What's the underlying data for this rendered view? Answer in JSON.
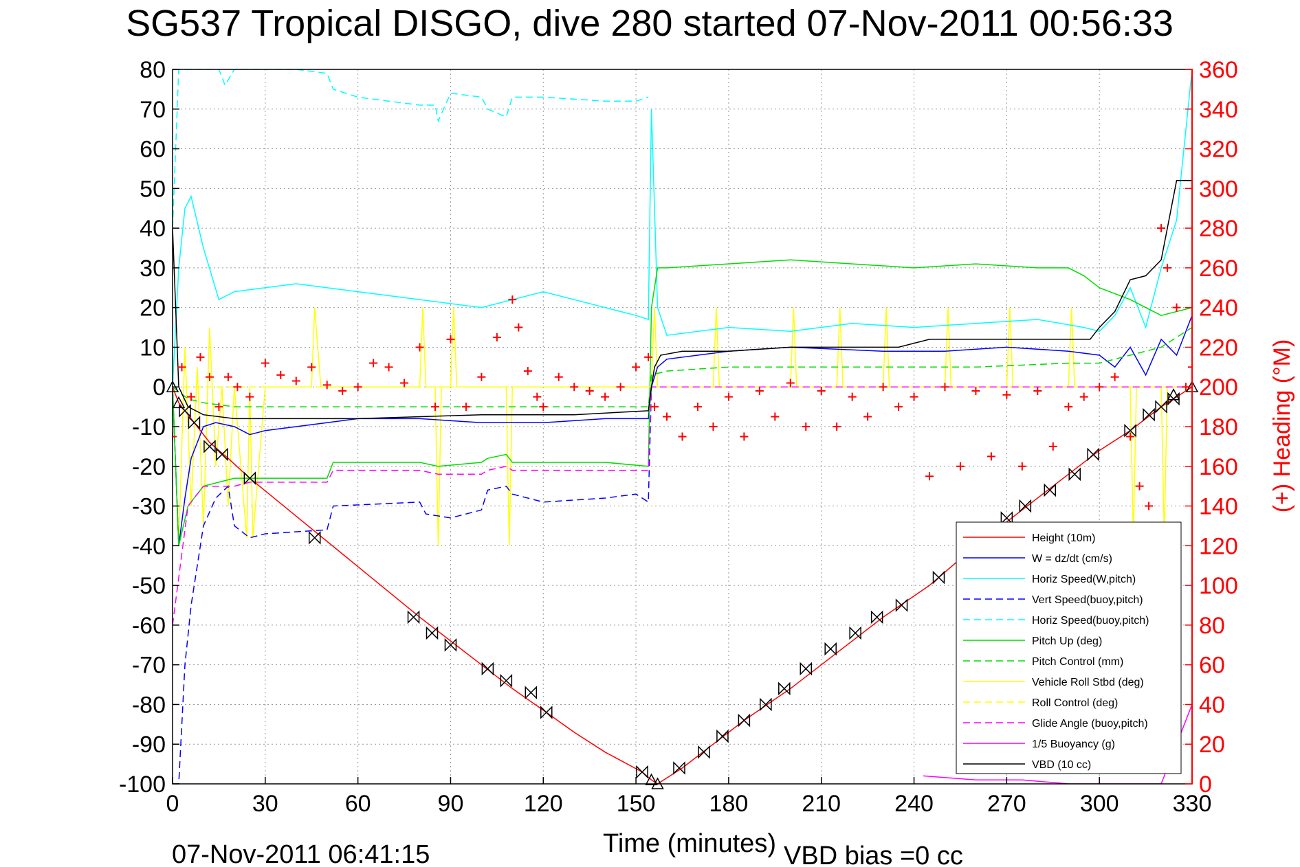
{
  "chart_data": {
    "type": "line",
    "title": "SG537 Tropical DISGO, dive 280 started 07-Nov-2011 00:56:33",
    "xlabel": "Time (minutes)",
    "ylabel": "",
    "y2label": "(+) Heading (°M)",
    "bottom_left_text": "07-Nov-2011 06:41:15",
    "bottom_right_text": "VBD bias =0 cc",
    "xlim": [
      0,
      330
    ],
    "ylim": [
      -100,
      80
    ],
    "y2lim": [
      0,
      360
    ],
    "grid": true,
    "legend_position": "lower-right",
    "x_ticks": [
      "0",
      "30",
      "60",
      "90",
      "120",
      "150",
      "180",
      "210",
      "240",
      "270",
      "300",
      "330"
    ],
    "y_ticks": [
      "80",
      "70",
      "60",
      "50",
      "40",
      "30",
      "20",
      "10",
      "0",
      "-10",
      "-20",
      "-30",
      "-40",
      "-50",
      "-60",
      "-70",
      "-80",
      "-90",
      "-100"
    ],
    "y2_ticks": [
      "360",
      "340",
      "320",
      "300",
      "280",
      "260",
      "240",
      "220",
      "200",
      "180",
      "160",
      "140",
      "120",
      "100",
      "80",
      "60",
      "40",
      "20",
      "0"
    ],
    "legend": [
      {
        "label": "Height (10m)",
        "color": "#ff0000",
        "dash": "solid"
      },
      {
        "label": "W = dz/dt (cm/s)",
        "color": "#0000ff",
        "dash": "solid"
      },
      {
        "label": "Horiz Speed(W,pitch)",
        "color": "#00ffff",
        "dash": "solid"
      },
      {
        "label": "Vert Speed(buoy,pitch)",
        "color": "#0000ff",
        "dash": "dashed"
      },
      {
        "label": "Horiz Speed(buoy,pitch)",
        "color": "#00ffff",
        "dash": "dashed"
      },
      {
        "label": "Pitch Up (deg)",
        "color": "#00dd00",
        "dash": "solid"
      },
      {
        "label": "Pitch Control (mm)",
        "color": "#00dd00",
        "dash": "dashed"
      },
      {
        "label": "Vehicle Roll Stbd (deg)",
        "color": "#ffff00",
        "dash": "solid"
      },
      {
        "label": "Roll Control (deg)",
        "color": "#ffff00",
        "dash": "dashed"
      },
      {
        "label": "Glide Angle (buoy,pitch)",
        "color": "#ff00ff",
        "dash": "dashed"
      },
      {
        "label": "1/5 Buoyancy (g)",
        "color": "#ff00ff",
        "dash": "solid"
      },
      {
        "label": "VBD (10 cc)",
        "color": "#000000",
        "dash": "solid"
      }
    ],
    "series": [
      {
        "key": "height",
        "color": "#ff0000",
        "dash": "solid",
        "x": [
          0,
          2,
          5,
          8,
          12,
          18,
          25,
          47,
          80,
          90,
          100,
          110,
          121,
          130,
          140,
          152,
          155,
          157,
          165,
          175,
          185,
          200,
          215,
          230,
          245,
          260,
          275,
          290,
          300,
          310,
          320,
          330
        ],
        "y": [
          0,
          -4,
          -7,
          -10,
          -14,
          -18,
          -23,
          -37,
          -58,
          -64,
          -70,
          -76,
          -82,
          -87,
          -92,
          -97,
          -99,
          -100,
          -96,
          -90,
          -84,
          -76,
          -67,
          -58,
          -50,
          -40,
          -31,
          -22,
          -16,
          -11,
          -5,
          0
        ]
      },
      {
        "key": "w",
        "color": "#0000ff",
        "dash": "solid",
        "x": [
          0,
          2,
          4,
          6,
          8,
          10,
          14,
          20,
          25,
          30,
          40,
          50,
          60,
          80,
          100,
          120,
          140,
          154,
          155,
          157,
          160,
          180,
          200,
          230,
          250,
          270,
          290,
          300,
          305,
          310,
          315,
          320,
          325,
          330
        ],
        "y": [
          0,
          -40,
          -28,
          -18,
          -14,
          -10,
          -9,
          -10,
          -12,
          -11,
          -10,
          -9,
          -8,
          -8,
          -9,
          -9,
          -8,
          -8,
          0,
          5,
          7,
          9,
          10,
          9,
          9,
          10,
          9,
          8,
          5,
          10,
          3,
          12,
          8,
          18
        ]
      },
      {
        "key": "horiz_speed_w",
        "color": "#00ffff",
        "dash": "solid",
        "x": [
          0,
          2,
          4,
          6,
          10,
          15,
          20,
          30,
          40,
          60,
          80,
          100,
          120,
          140,
          150,
          154,
          155,
          157,
          160,
          180,
          200,
          220,
          240,
          260,
          280,
          295,
          300,
          305,
          310,
          315,
          320,
          325,
          330
        ],
        "y": [
          0,
          30,
          45,
          48,
          35,
          22,
          24,
          25,
          26,
          24,
          22,
          20,
          24,
          20,
          18,
          17,
          70,
          20,
          13,
          15,
          14,
          16,
          15,
          16,
          17,
          15,
          14,
          18,
          25,
          15,
          30,
          42,
          80
        ]
      },
      {
        "key": "vert_speed_buoy",
        "color": "#0000ff",
        "dash": "dashed",
        "x": [
          0,
          2,
          4,
          6,
          8,
          10,
          14,
          18,
          20,
          25,
          30,
          50,
          52,
          80,
          82,
          90,
          100,
          102,
          108,
          110,
          120,
          140,
          150,
          154,
          155,
          157
        ],
        "y": [
          -100,
          -100,
          -70,
          -55,
          -45,
          -35,
          -28,
          -25,
          -35,
          -38,
          -37,
          -36,
          -30,
          -29,
          -32,
          -33,
          -31,
          -26,
          -25,
          -27,
          -29,
          -28,
          -27,
          -29,
          0,
          0
        ]
      },
      {
        "key": "horiz_speed_buoy",
        "color": "#00ffff",
        "dash": "dashed",
        "x": [
          0,
          2,
          5,
          10,
          15,
          17,
          20,
          25,
          30,
          40,
          50,
          52,
          60,
          70,
          80,
          85,
          86,
          90,
          100,
          102,
          108,
          110,
          120,
          140,
          150,
          154
        ],
        "y": [
          40,
          80,
          80,
          80,
          80,
          76,
          80,
          80,
          80,
          80,
          79,
          75,
          73,
          72,
          71,
          71,
          67,
          74,
          73,
          70,
          68,
          73,
          73,
          72,
          72,
          73
        ]
      },
      {
        "key": "pitch_up",
        "color": "#00dd00",
        "dash": "solid",
        "x": [
          0,
          2,
          5,
          10,
          15,
          20,
          25,
          30,
          40,
          50,
          52,
          60,
          80,
          86,
          100,
          102,
          108,
          110,
          120,
          140,
          154,
          155,
          157,
          160,
          180,
          200,
          220,
          240,
          260,
          280,
          290,
          295,
          300,
          310,
          320,
          330
        ],
        "y": [
          0,
          -40,
          -30,
          -25,
          -24,
          -23,
          -23,
          -23,
          -23,
          -23,
          -19,
          -19,
          -19,
          -20,
          -19,
          -18,
          -17,
          -19,
          -19,
          -19,
          -20,
          20,
          30,
          30,
          31,
          32,
          31,
          30,
          31,
          30,
          30,
          28,
          25,
          22,
          18,
          20
        ]
      },
      {
        "key": "pitch_control",
        "color": "#00dd00",
        "dash": "dashed",
        "x": [
          0,
          5,
          10,
          20,
          40,
          60,
          80,
          100,
          120,
          140,
          154,
          155,
          160,
          180,
          200,
          230,
          260,
          290,
          300,
          310,
          320,
          330
        ],
        "y": [
          0,
          -3,
          -4,
          -5,
          -5,
          -5,
          -5,
          -5,
          -5,
          -5,
          -5,
          3,
          4,
          5,
          5,
          5,
          5,
          6,
          6,
          8,
          10,
          15
        ]
      },
      {
        "key": "roll_control",
        "color": "#ffff00",
        "dash": "dashed",
        "x": [
          0,
          330
        ],
        "y": [
          0,
          0
        ]
      },
      {
        "key": "glide_angle",
        "color": "#ff00ff",
        "dash": "dashed",
        "x": [
          0,
          5,
          10,
          20,
          25,
          30,
          50,
          52,
          80,
          86,
          100,
          102,
          108,
          110,
          120,
          140,
          154,
          155,
          330
        ],
        "y": [
          -60,
          -30,
          -25,
          -25,
          -24,
          -24,
          -24,
          -21,
          -21,
          -22,
          -22,
          -21,
          -20,
          -21,
          -21,
          -21,
          -21,
          0,
          0
        ]
      },
      {
        "key": "buoyancy",
        "color": "#ff00ff",
        "dash": "solid",
        "x": [
          243,
          260,
          275,
          290,
          300,
          310,
          320,
          330
        ],
        "y": [
          -98,
          -99,
          -99,
          -100,
          -100,
          -100,
          -100,
          -80
        ]
      },
      {
        "key": "vbd",
        "color": "#000000",
        "dash": "solid",
        "x": [
          0,
          2,
          5,
          10,
          20,
          40,
          60,
          100,
          130,
          154,
          155,
          156,
          158,
          165,
          180,
          200,
          215,
          235,
          245,
          265,
          290,
          297,
          300,
          305,
          310,
          315,
          320,
          325,
          330
        ],
        "y": [
          40,
          0,
          -5,
          -7,
          -8,
          -8,
          -8,
          -7,
          -7,
          -6,
          0,
          5,
          8,
          9,
          9,
          10,
          10,
          10,
          12,
          12,
          12,
          12,
          15,
          19,
          27,
          28,
          32,
          52,
          52
        ]
      }
    ],
    "heading": {
      "color": "#ff0000",
      "marker": "+",
      "axis": "y2",
      "x": [
        0,
        3,
        6,
        9,
        12,
        15,
        18,
        21,
        25,
        30,
        35,
        40,
        45,
        50,
        55,
        60,
        65,
        70,
        75,
        80,
        85,
        90,
        95,
        100,
        105,
        110,
        112,
        115,
        118,
        120,
        125,
        130,
        135,
        140,
        145,
        150,
        154,
        156,
        160,
        165,
        170,
        175,
        180,
        185,
        190,
        195,
        200,
        205,
        210,
        215,
        220,
        225,
        230,
        235,
        240,
        245,
        250,
        255,
        260,
        265,
        270,
        275,
        280,
        285,
        290,
        295,
        300,
        305,
        310,
        313,
        316,
        318,
        320,
        322,
        325,
        328,
        330
      ],
      "y": [
        175,
        210,
        195,
        215,
        205,
        190,
        205,
        200,
        195,
        212,
        206,
        203,
        210,
        201,
        198,
        200,
        212,
        210,
        202,
        220,
        190,
        224,
        190,
        205,
        225,
        244,
        230,
        208,
        195,
        190,
        205,
        200,
        198,
        195,
        200,
        210,
        215,
        190,
        185,
        175,
        190,
        180,
        195,
        175,
        198,
        185,
        202,
        180,
        198,
        180,
        195,
        185,
        200,
        190,
        195,
        155,
        200,
        160,
        198,
        165,
        196,
        160,
        198,
        170,
        190,
        195,
        200,
        205,
        175,
        150,
        140,
        120,
        280,
        260,
        240,
        200,
        210
      ]
    },
    "vehicle_roll": {
      "color": "#ffff00",
      "x": [
        0,
        2,
        4,
        6,
        8,
        10,
        12,
        14,
        16,
        18,
        20,
        24,
        25,
        26,
        30,
        45,
        46,
        48,
        80,
        81,
        82,
        85,
        86,
        87,
        90,
        91,
        92,
        108,
        109,
        110,
        150,
        155,
        156,
        157,
        160,
        175,
        176,
        177,
        180,
        200,
        201,
        202,
        215,
        216,
        217,
        230,
        231,
        232,
        250,
        251,
        252,
        270,
        271,
        272,
        290,
        291,
        292,
        300,
        310,
        311,
        312,
        320,
        321,
        322,
        330
      ],
      "y": [
        0,
        -40,
        10,
        -30,
        5,
        -35,
        15,
        -20,
        0,
        -30,
        0,
        -38,
        0,
        -38,
        0,
        0,
        20,
        0,
        0,
        20,
        0,
        0,
        -40,
        0,
        0,
        20,
        0,
        0,
        -40,
        0,
        0,
        0,
        20,
        0,
        0,
        0,
        20,
        0,
        0,
        0,
        20,
        0,
        0,
        20,
        0,
        0,
        20,
        0,
        0,
        20,
        0,
        0,
        20,
        0,
        0,
        20,
        0,
        0,
        0,
        -38,
        0,
        0,
        -38,
        0,
        0
      ]
    },
    "markers": {
      "triangle": {
        "x": [
          0,
          2,
          155,
          157,
          324,
          330
        ],
        "y": [
          0,
          -4,
          -99,
          -100,
          -2,
          0
        ]
      },
      "bowtie": {
        "x": [
          4,
          7,
          12,
          16,
          25,
          46,
          78,
          84,
          90,
          102,
          108,
          116,
          121,
          152,
          164,
          172,
          178,
          185,
          192,
          198,
          205,
          213,
          221,
          228,
          236,
          248,
          262,
          270,
          276,
          284,
          292,
          298,
          310,
          316,
          320,
          324
        ],
        "y": [
          -6,
          -9,
          -15,
          -17,
          -23,
          -38,
          -58,
          -62,
          -65,
          -71,
          -74,
          -77,
          -82,
          -97,
          -96,
          -92,
          -88,
          -84,
          -80,
          -76,
          -71,
          -66,
          -62,
          -58,
          -55,
          -48,
          -39,
          -33,
          -30,
          -26,
          -22,
          -17,
          -11,
          -7,
          -5,
          -3
        ]
      }
    }
  }
}
